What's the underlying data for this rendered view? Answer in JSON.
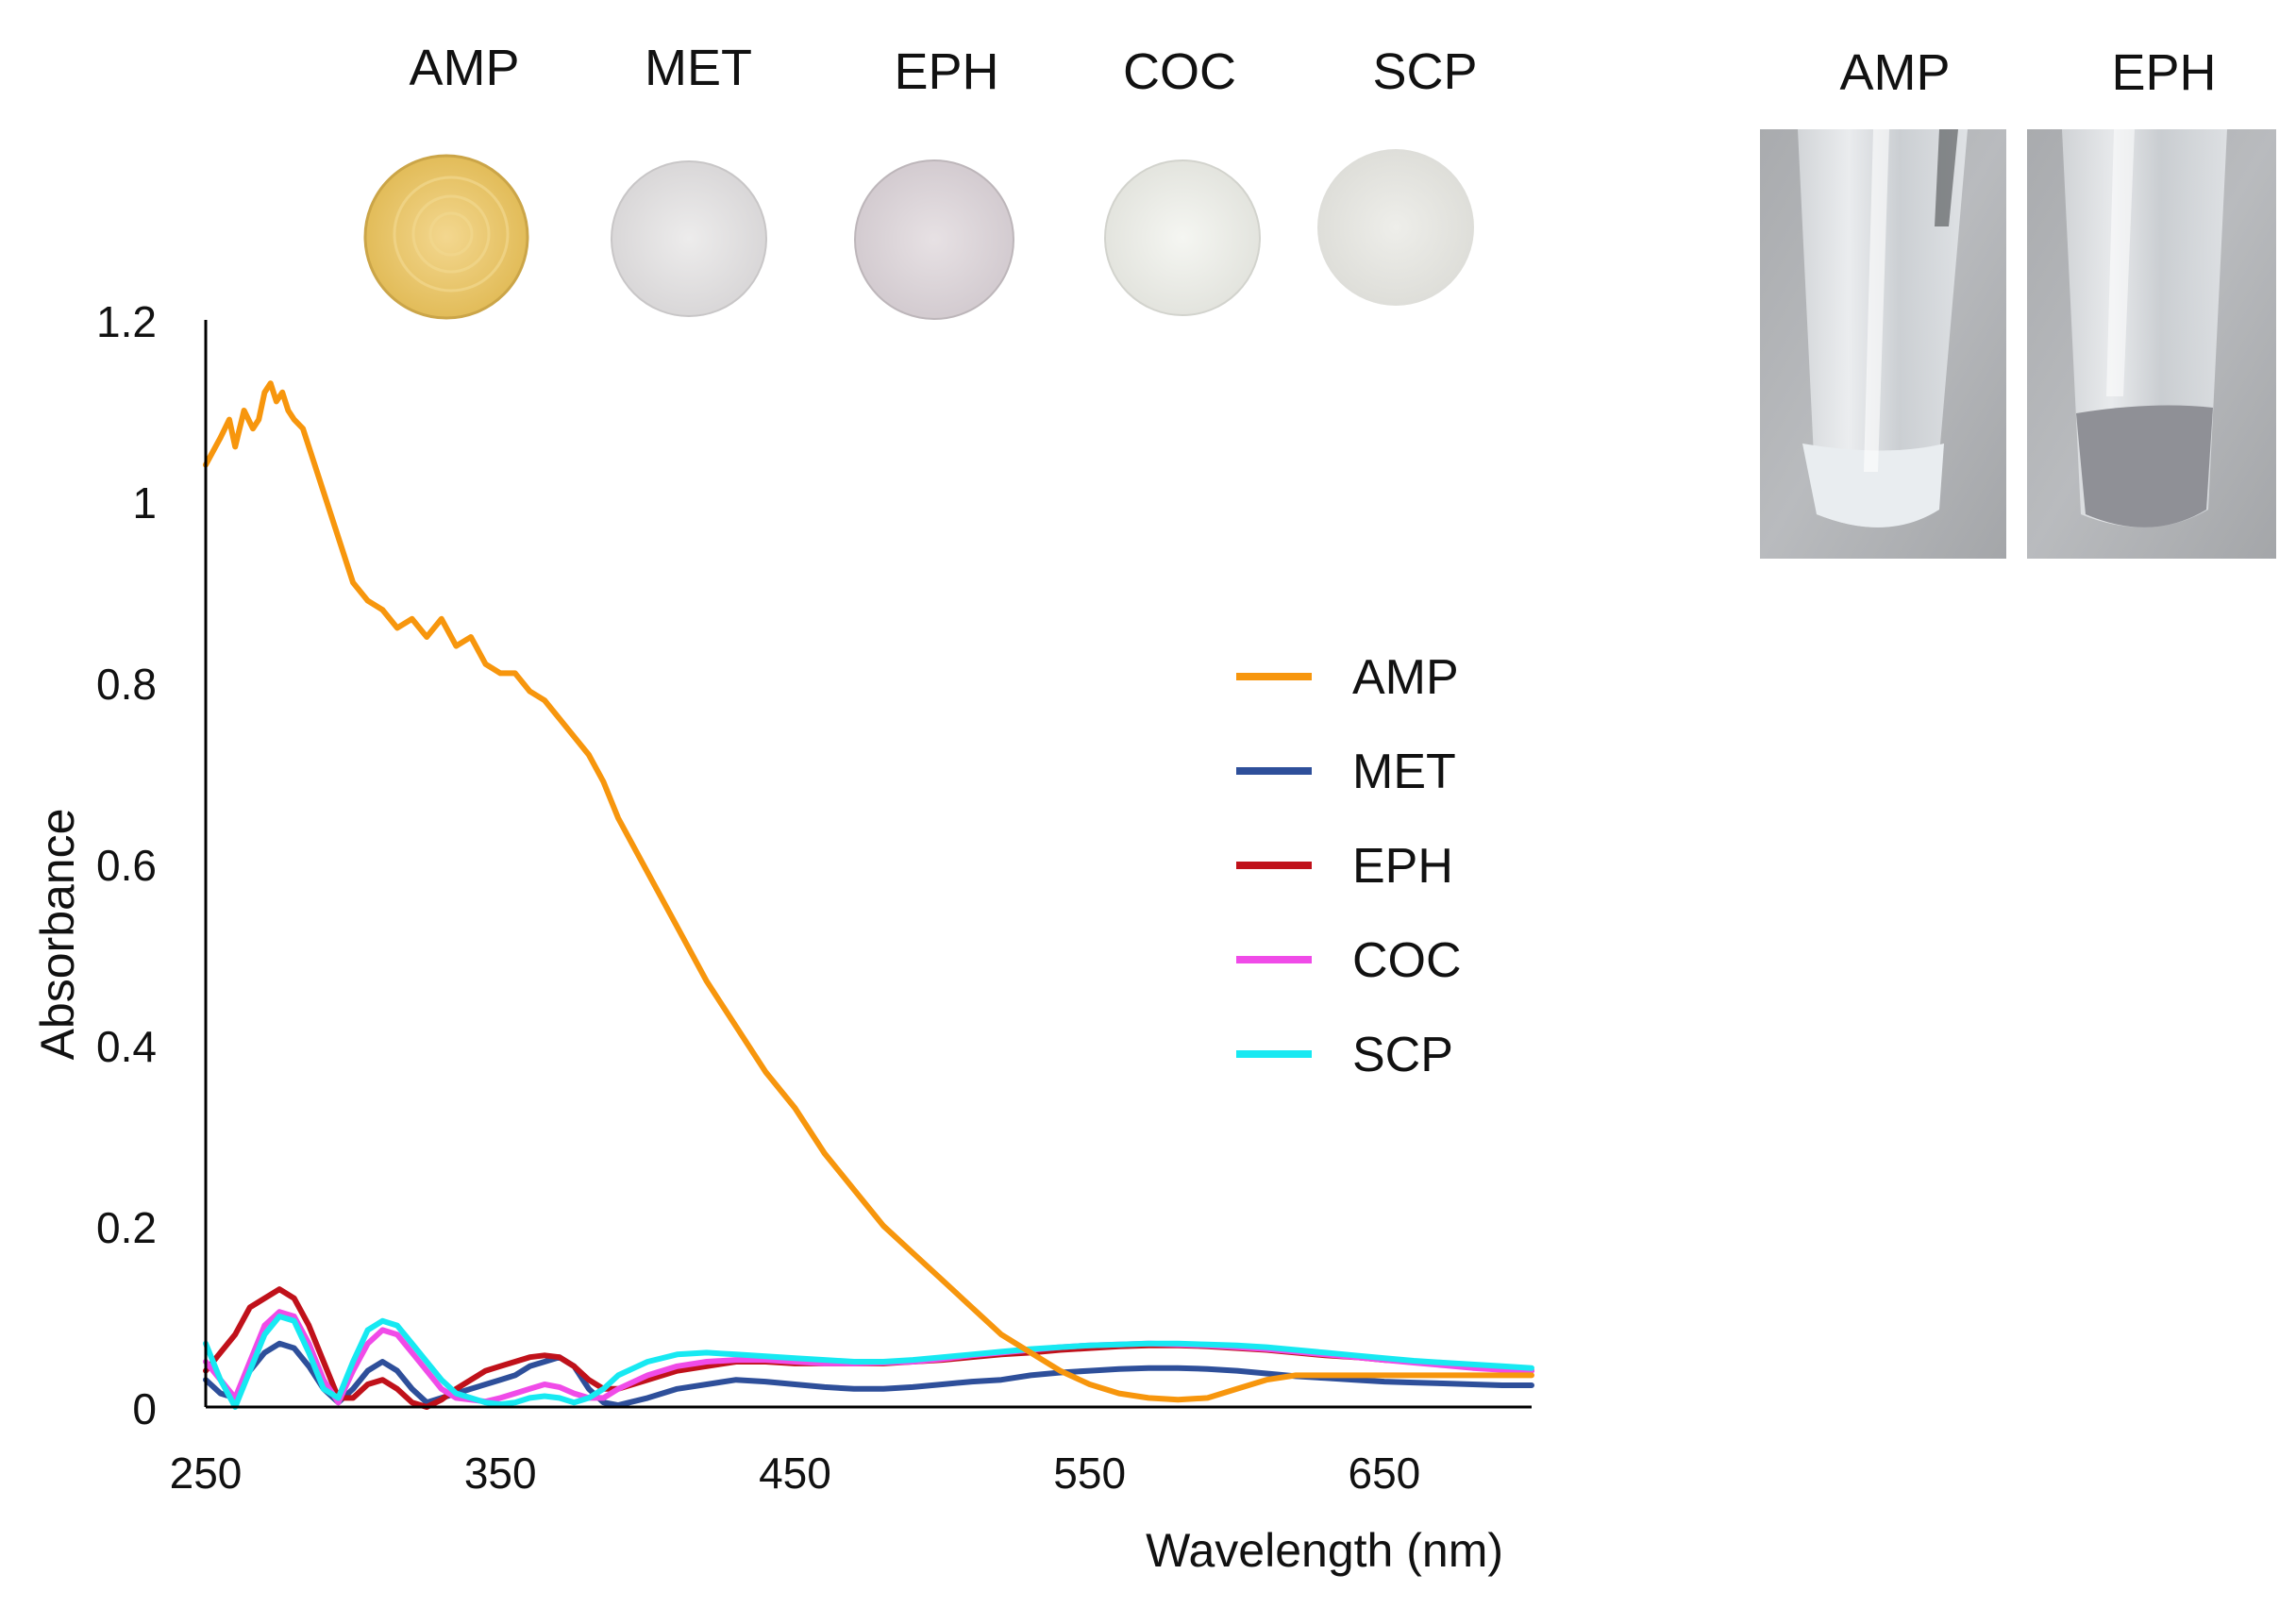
{
  "chart_data": {
    "type": "line",
    "title": "",
    "xlabel": "Wavelength (nm)",
    "ylabel": "Absorbance",
    "xlim": [
      250,
      700
    ],
    "ylim": [
      0,
      1.2
    ],
    "xticks": [
      250,
      350,
      450,
      550,
      650
    ],
    "xtick_labels": [
      "250",
      "350",
      "450",
      "550",
      "650"
    ],
    "yticks": [
      0,
      0.2,
      0.4,
      0.6,
      0.8,
      1.0,
      1.2
    ],
    "ytick_labels": [
      "0",
      "0.2",
      "0.4",
      "0.6",
      "0.8",
      "1",
      "1.2"
    ],
    "grid": false,
    "legend_position": "right",
    "series": [
      {
        "name": "AMP",
        "color": "#F7960D",
        "x": [
          250,
          255,
          258,
          260,
          263,
          266,
          268,
          270,
          272,
          274,
          276,
          278,
          280,
          283,
          286,
          290,
          295,
          300,
          305,
          310,
          315,
          320,
          325,
          330,
          335,
          340,
          345,
          350,
          355,
          360,
          365,
          370,
          375,
          380,
          385,
          390,
          395,
          400,
          410,
          420,
          430,
          440,
          450,
          460,
          470,
          480,
          490,
          500,
          510,
          520,
          530,
          540,
          550,
          560,
          570,
          580,
          590,
          600,
          610,
          620,
          630,
          640,
          650,
          660,
          670,
          680,
          690,
          700
        ],
        "y": [
          1.04,
          1.07,
          1.09,
          1.06,
          1.1,
          1.08,
          1.09,
          1.12,
          1.13,
          1.11,
          1.12,
          1.1,
          1.09,
          1.08,
          1.05,
          1.01,
          0.96,
          0.91,
          0.89,
          0.88,
          0.86,
          0.87,
          0.85,
          0.87,
          0.84,
          0.85,
          0.82,
          0.81,
          0.81,
          0.79,
          0.78,
          0.76,
          0.74,
          0.72,
          0.69,
          0.65,
          0.62,
          0.59,
          0.53,
          0.47,
          0.42,
          0.37,
          0.33,
          0.28,
          0.24,
          0.2,
          0.17,
          0.14,
          0.11,
          0.08,
          0.06,
          0.04,
          0.025,
          0.015,
          0.01,
          0.008,
          0.01,
          0.02,
          0.03,
          0.035,
          0.035,
          0.035,
          0.035,
          0.035,
          0.035,
          0.035,
          0.035,
          0.035
        ]
      },
      {
        "name": "MET",
        "color": "#2E4F9A",
        "x": [
          250,
          255,
          260,
          265,
          270,
          275,
          280,
          285,
          290,
          295,
          300,
          305,
          310,
          315,
          320,
          325,
          330,
          335,
          340,
          345,
          350,
          355,
          360,
          365,
          370,
          375,
          380,
          385,
          390,
          400,
          410,
          420,
          430,
          440,
          450,
          460,
          470,
          480,
          490,
          500,
          510,
          520,
          530,
          540,
          550,
          560,
          570,
          580,
          590,
          600,
          610,
          620,
          630,
          640,
          650,
          660,
          670,
          680,
          690,
          700
        ],
        "y": [
          0.03,
          0.015,
          0.01,
          0.04,
          0.06,
          0.07,
          0.065,
          0.045,
          0.02,
          0.005,
          0.02,
          0.04,
          0.05,
          0.04,
          0.02,
          0.005,
          0.01,
          0.015,
          0.02,
          0.025,
          0.03,
          0.035,
          0.045,
          0.05,
          0.055,
          0.045,
          0.02,
          0.005,
          0.002,
          0.01,
          0.02,
          0.025,
          0.03,
          0.028,
          0.025,
          0.022,
          0.02,
          0.02,
          0.022,
          0.025,
          0.028,
          0.03,
          0.035,
          0.038,
          0.04,
          0.042,
          0.043,
          0.043,
          0.042,
          0.04,
          0.037,
          0.034,
          0.032,
          0.03,
          0.028,
          0.027,
          0.026,
          0.025,
          0.024,
          0.024
        ]
      },
      {
        "name": "EPH",
        "color": "#C0111A",
        "x": [
          250,
          255,
          260,
          265,
          270,
          275,
          280,
          285,
          290,
          295,
          300,
          305,
          310,
          315,
          320,
          325,
          330,
          335,
          340,
          345,
          350,
          355,
          360,
          365,
          370,
          375,
          380,
          385,
          390,
          400,
          410,
          420,
          430,
          440,
          450,
          460,
          470,
          480,
          490,
          500,
          510,
          520,
          530,
          540,
          550,
          560,
          570,
          580,
          590,
          600,
          610,
          620,
          630,
          640,
          650,
          660,
          670,
          680,
          690,
          700
        ],
        "y": [
          0.04,
          0.06,
          0.08,
          0.11,
          0.12,
          0.13,
          0.12,
          0.09,
          0.05,
          0.01,
          0.01,
          0.025,
          0.03,
          0.02,
          0.005,
          0.0,
          0.008,
          0.02,
          0.03,
          0.04,
          0.045,
          0.05,
          0.055,
          0.057,
          0.055,
          0.045,
          0.03,
          0.02,
          0.02,
          0.03,
          0.04,
          0.045,
          0.05,
          0.05,
          0.048,
          0.048,
          0.048,
          0.048,
          0.05,
          0.052,
          0.055,
          0.058,
          0.06,
          0.063,
          0.065,
          0.067,
          0.068,
          0.068,
          0.067,
          0.065,
          0.063,
          0.06,
          0.057,
          0.055,
          0.052,
          0.05,
          0.047,
          0.045,
          0.043,
          0.04
        ]
      },
      {
        "name": "COC",
        "color": "#F04BE8",
        "x": [
          250,
          255,
          260,
          265,
          270,
          275,
          280,
          285,
          290,
          295,
          300,
          305,
          310,
          315,
          320,
          325,
          330,
          335,
          340,
          345,
          350,
          355,
          360,
          365,
          370,
          375,
          380,
          385,
          390,
          400,
          410,
          420,
          430,
          440,
          450,
          460,
          470,
          480,
          490,
          500,
          510,
          520,
          530,
          540,
          550,
          560,
          570,
          580,
          590,
          600,
          610,
          620,
          630,
          640,
          650,
          660,
          670,
          680,
          690,
          700
        ],
        "y": [
          0.05,
          0.03,
          0.01,
          0.05,
          0.09,
          0.105,
          0.1,
          0.07,
          0.03,
          0.005,
          0.04,
          0.07,
          0.085,
          0.08,
          0.06,
          0.04,
          0.02,
          0.01,
          0.008,
          0.006,
          0.01,
          0.015,
          0.02,
          0.025,
          0.022,
          0.015,
          0.01,
          0.01,
          0.02,
          0.035,
          0.045,
          0.05,
          0.052,
          0.052,
          0.05,
          0.048,
          0.048,
          0.049,
          0.05,
          0.053,
          0.057,
          0.06,
          0.063,
          0.066,
          0.068,
          0.069,
          0.07,
          0.069,
          0.068,
          0.066,
          0.064,
          0.061,
          0.058,
          0.055,
          0.052,
          0.049,
          0.046,
          0.043,
          0.041,
          0.04
        ]
      },
      {
        "name": "SCP",
        "color": "#17E9F2",
        "x": [
          250,
          255,
          260,
          265,
          270,
          275,
          280,
          285,
          290,
          295,
          300,
          305,
          310,
          315,
          320,
          325,
          330,
          335,
          340,
          345,
          350,
          355,
          360,
          365,
          370,
          375,
          380,
          385,
          390,
          400,
          410,
          420,
          430,
          440,
          450,
          460,
          470,
          480,
          490,
          500,
          510,
          520,
          530,
          540,
          550,
          560,
          570,
          580,
          590,
          600,
          610,
          620,
          630,
          640,
          650,
          660,
          670,
          680,
          690,
          700
        ],
        "y": [
          0.07,
          0.03,
          0.0,
          0.04,
          0.08,
          0.1,
          0.095,
          0.06,
          0.02,
          0.01,
          0.05,
          0.085,
          0.095,
          0.09,
          0.07,
          0.05,
          0.03,
          0.015,
          0.01,
          0.005,
          0.003,
          0.005,
          0.01,
          0.012,
          0.01,
          0.005,
          0.01,
          0.02,
          0.035,
          0.05,
          0.058,
          0.06,
          0.058,
          0.056,
          0.054,
          0.052,
          0.05,
          0.05,
          0.052,
          0.055,
          0.058,
          0.061,
          0.064,
          0.066,
          0.068,
          0.069,
          0.07,
          0.07,
          0.069,
          0.068,
          0.066,
          0.063,
          0.06,
          0.057,
          0.054,
          0.051,
          0.049,
          0.047,
          0.045,
          0.043
        ]
      }
    ]
  },
  "sample_row": {
    "labels": [
      "AMP",
      "MET",
      "EPH",
      "COC",
      "SCP"
    ],
    "colors": [
      "#E9C76F",
      "#E3E1E2",
      "#DDD6DA",
      "#EDEEE9",
      "#E8E8E4"
    ]
  },
  "tube_row": {
    "labels": [
      "AMP",
      "EPH"
    ]
  }
}
